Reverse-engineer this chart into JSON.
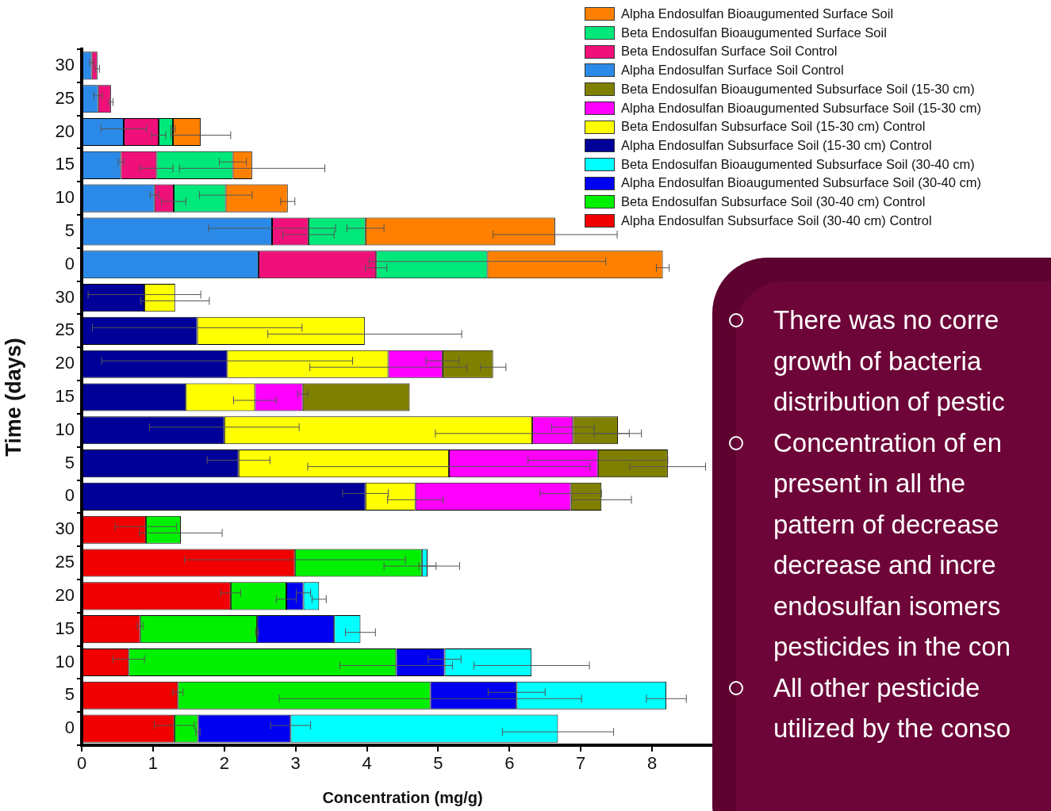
{
  "chart_data": {
    "type": "bar",
    "orientation": "horizontal",
    "stacked": true,
    "xlabel": "Concentration (mg/g)",
    "ylabel": "Time (days)",
    "categories": [
      "30",
      "25",
      "20",
      "15",
      "10",
      "5",
      "0",
      "30",
      "25",
      "20",
      "15",
      "10",
      "5",
      "0",
      "30",
      "25",
      "20",
      "15",
      "10",
      "5",
      "0"
    ],
    "xlim": [
      0,
      9
    ],
    "xticks": [
      0,
      1,
      2,
      3,
      4,
      5,
      6,
      7,
      8
    ],
    "grid": false,
    "legend": "top right",
    "series": [
      {
        "name": "Alpha Endosulfan Subsurface Soil (30-40 cm) Control",
        "color": "#f00000",
        "values": [
          null,
          null,
          null,
          null,
          null,
          null,
          null,
          null,
          null,
          null,
          null,
          null,
          null,
          null,
          0.9,
          2.99,
          2.09,
          0.82,
          0.66,
          1.35,
          1.3
        ],
        "errors": [
          null,
          null,
          null,
          null,
          null,
          null,
          null,
          null,
          null,
          null,
          null,
          null,
          null,
          null,
          0.43,
          1.55,
          0.14,
          0.04,
          0.22,
          0.07,
          0.28
        ]
      },
      {
        "name": "Beta Endosulfan Subsurface Soil (30-40 cm) Control",
        "color": "#00f000",
        "values": [
          null,
          null,
          null,
          null,
          null,
          null,
          null,
          null,
          null,
          null,
          null,
          null,
          null,
          null,
          0.49,
          1.78,
          0.78,
          1.64,
          3.75,
          3.54,
          0.33
        ],
        "errors": [
          null,
          null,
          null,
          null,
          null,
          null,
          null,
          null,
          null,
          null,
          null,
          null,
          null,
          null,
          0.58,
          0.53,
          0.14,
          0.02,
          0.79,
          2.12,
          0.03
        ]
      },
      {
        "name": "Alpha Endosulfan Bioaugumented Subsurface Soil (30-40 cm)",
        "color": "#0000f0",
        "values": [
          null,
          null,
          null,
          null,
          null,
          null,
          null,
          null,
          null,
          null,
          null,
          null,
          null,
          null,
          null,
          null,
          0.24,
          1.08,
          0.68,
          1.21,
          1.3
        ],
        "errors": [
          null,
          null,
          null,
          null,
          null,
          null,
          null,
          null,
          null,
          null,
          null,
          null,
          null,
          null,
          null,
          null,
          0.1,
          null,
          0.23,
          0.4,
          0.28
        ]
      },
      {
        "name": "Beta Endosulfan Bioaugumented Subsurface Soil (30-40 cm)",
        "color": "#00ffff",
        "values": [
          null,
          null,
          null,
          null,
          null,
          null,
          null,
          null,
          null,
          null,
          null,
          null,
          null,
          null,
          null,
          0.08,
          0.22,
          0.37,
          1.22,
          2.1,
          3.75
        ],
        "errors": [
          null,
          null,
          null,
          null,
          null,
          null,
          null,
          null,
          null,
          null,
          null,
          null,
          null,
          null,
          null,
          0.12,
          0.1,
          0.21,
          0.81,
          0.28,
          0.78
        ]
      },
      {
        "name": "Alpha Endosulfan Subsurface Soil (15-30 cm) Control",
        "color": "#000099",
        "values": [
          null,
          null,
          null,
          null,
          null,
          null,
          null,
          0.88,
          1.62,
          2.04,
          1.46,
          2.0,
          2.2,
          3.98,
          null,
          null,
          null,
          null,
          null,
          null,
          null
        ],
        "errors": [
          null,
          null,
          null,
          null,
          null,
          null,
          null,
          0.79,
          1.47,
          1.76,
          null,
          1.05,
          0.44,
          0.32,
          null,
          null,
          null,
          null,
          null,
          null,
          null
        ]
      },
      {
        "name": "Beta Endosulfan Subsurface Soil (15-30 cm) Control",
        "color": "#ffff00",
        "values": [
          null,
          null,
          null,
          null,
          null,
          null,
          null,
          0.43,
          2.35,
          2.26,
          0.97,
          4.32,
          2.95,
          0.7,
          null,
          null,
          null,
          null,
          null,
          null,
          null
        ],
        "errors": [
          null,
          null,
          null,
          null,
          null,
          null,
          null,
          0.48,
          1.36,
          1.1,
          0.3,
          1.36,
          1.98,
          0.39,
          null,
          null,
          null,
          null,
          null,
          null,
          null
        ]
      },
      {
        "name": "Alpha Endosulfan Bioaugumented Subsurface Soil (15-30 cm)",
        "color": "#ff00ff",
        "values": [
          null,
          null,
          null,
          null,
          null,
          null,
          null,
          null,
          null,
          0.76,
          0.67,
          0.57,
          2.09,
          2.18,
          null,
          null,
          null,
          null,
          null,
          null,
          null
        ],
        "errors": [
          null,
          null,
          null,
          null,
          null,
          null,
          null,
          null,
          null,
          0.23,
          0.07,
          0.3,
          0.98,
          0.43,
          null,
          null,
          null,
          null,
          null,
          null,
          null
        ]
      },
      {
        "name": "Beta Endosulfan Bioaugumented Subsurface Soil (15-30 cm)",
        "color": "#808000",
        "values": [
          null,
          null,
          null,
          null,
          null,
          null,
          null,
          null,
          null,
          0.71,
          1.5,
          0.63,
          0.98,
          0.43,
          null,
          null,
          null,
          null,
          null,
          null,
          null
        ],
        "errors": [
          null,
          null,
          null,
          null,
          null,
          null,
          null,
          null,
          null,
          0.18,
          null,
          0.33,
          0.53,
          0.42,
          null,
          null,
          null,
          null,
          null,
          null,
          null
        ]
      },
      {
        "name": "Alpha Endosulfan Surface Soil Control",
        "color": "#2b8ae8",
        "values": [
          0.14,
          0.23,
          0.59,
          0.55,
          1.02,
          2.67,
          2.48,
          null,
          null,
          null,
          null,
          null,
          null,
          null,
          null,
          null,
          null,
          null,
          null,
          null,
          null
        ],
        "errors": [
          0.03,
          0.06,
          0.32,
          0.04,
          0.06,
          0.89,
          null,
          null,
          null,
          null,
          null,
          null,
          null,
          null,
          null,
          null,
          null,
          null,
          null,
          null,
          null
        ]
      },
      {
        "name": "Beta Endosulfan Surface Soil Control",
        "color": "#f0107a",
        "values": [
          0.08,
          0.18,
          0.49,
          0.5,
          0.27,
          0.51,
          1.65,
          null,
          null,
          null,
          null,
          null,
          null,
          null,
          null,
          null,
          null,
          null,
          null,
          null,
          null
        ],
        "errors": [
          0.03,
          0.03,
          0.1,
          0.23,
          0.17,
          0.36,
          0.15,
          null,
          null,
          null,
          null,
          null,
          null,
          null,
          null,
          null,
          null,
          null,
          null,
          null,
          null
        ]
      },
      {
        "name": "Beta Endosulfan Bioaugumented Surface Soil",
        "color": "#00e87a",
        "values": [
          null,
          null,
          0.2,
          1.07,
          0.73,
          0.8,
          1.56,
          null,
          null,
          null,
          null,
          null,
          null,
          null,
          null,
          null,
          null,
          null,
          null,
          null,
          null
        ],
        "errors": [
          null,
          null,
          0.03,
          0.19,
          0.37,
          0.26,
          1.66,
          null,
          null,
          null,
          null,
          null,
          null,
          null,
          null,
          null,
          null,
          null,
          null,
          null,
          null
        ]
      },
      {
        "name": "Alpha Endosulfan Bioaugumented Surface Soil",
        "color": "#ff8000",
        "values": [
          null,
          null,
          0.39,
          0.27,
          0.87,
          2.66,
          2.46,
          null,
          null,
          null,
          null,
          null,
          null,
          null,
          null,
          null,
          null,
          null,
          null,
          null,
          null
        ],
        "errors": [
          null,
          null,
          0.42,
          1.02,
          0.1,
          0.87,
          0.09,
          null,
          null,
          null,
          null,
          null,
          null,
          null,
          null,
          null,
          null,
          null,
          null,
          null,
          null
        ]
      }
    ],
    "annotations": [
      "There was no corre\ngrowth of bacteria\ndistribution of pestic",
      "Concentration of en\npresent in all the\npattern of decrease\ndecrease and incre\nendosulfan isomers\npesticides in the con",
      "All other pesticide\nutilized by the conso"
    ]
  }
}
